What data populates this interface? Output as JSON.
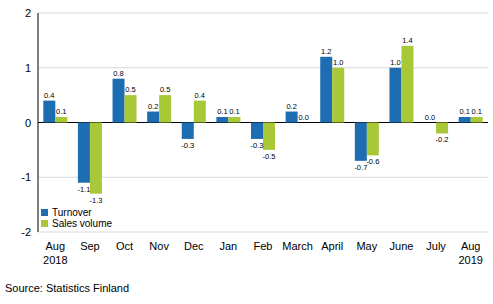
{
  "chart_data": {
    "type": "bar",
    "categories": [
      "Aug 2018",
      "Sep",
      "Oct",
      "Nov",
      "Dec",
      "Jan",
      "Feb",
      "March",
      "April",
      "May",
      "June",
      "July",
      "Aug 2019"
    ],
    "series": [
      {
        "name": "Turnover",
        "color": "#1c6db2",
        "values": [
          0.4,
          -1.1,
          0.8,
          0.2,
          -0.3,
          0.1,
          -0.3,
          0.2,
          1.2,
          -0.7,
          1.0,
          0.0,
          0.1
        ],
        "value_labels": [
          "0.4",
          "-1.1",
          "0.8",
          "0.2",
          "-0.3",
          "0.1",
          "-0.3",
          "0.2",
          "1.2",
          "-0.7",
          "1.0",
          "0.0",
          "0.1"
        ]
      },
      {
        "name": "Sales volume",
        "color": "#a8c838",
        "values": [
          0.1,
          -1.3,
          0.5,
          0.5,
          0.4,
          0.1,
          -0.5,
          0.0,
          1.0,
          -0.6,
          1.4,
          -0.2,
          0.1
        ],
        "value_labels": [
          "0.1",
          "-1.3",
          "0.5",
          "0.5",
          "0.4",
          "0.1",
          "-0.5",
          "0.0",
          "1.0",
          "-0.6",
          "1.4",
          "-0.2",
          "0.1"
        ]
      }
    ],
    "ylim": [
      -2,
      2
    ],
    "yticks": [
      -2,
      -1,
      0,
      1,
      2
    ],
    "grid": true,
    "data_labels": true,
    "legend": "lower left",
    "source": "Source: Statistics Finland"
  }
}
